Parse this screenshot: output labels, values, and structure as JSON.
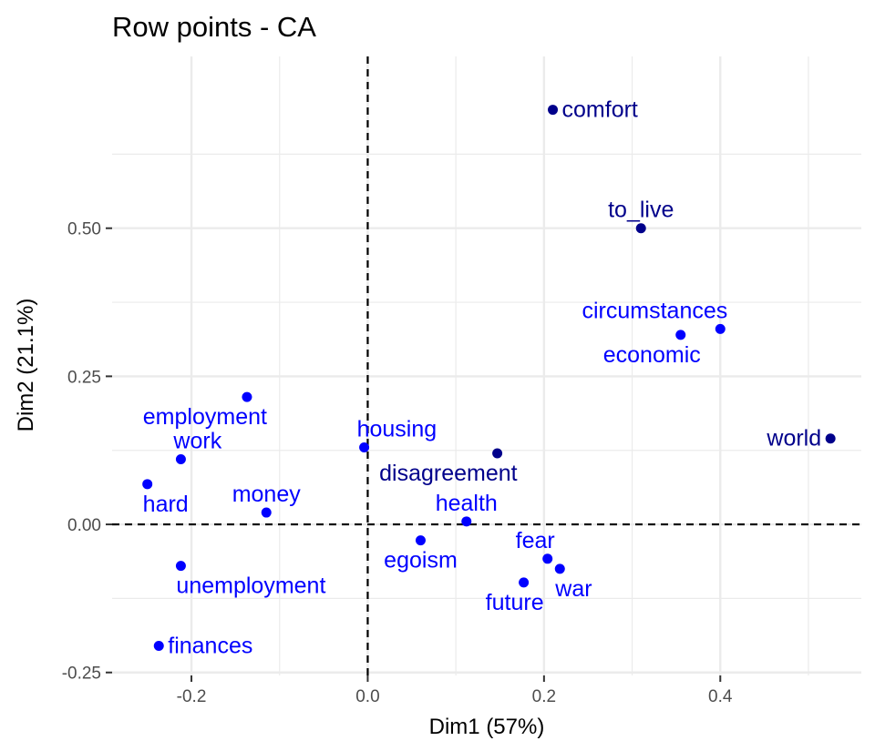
{
  "chart_data": {
    "type": "scatter",
    "title": "Row points - CA",
    "xlabel": "Dim1 (57%)",
    "ylabel": "Dim2 (21.1%)",
    "xlim": [
      -0.29,
      0.56
    ],
    "ylim": [
      -0.255,
      0.79
    ],
    "xticks": [
      -0.2,
      0.0,
      0.2,
      0.4
    ],
    "xtick_labels": [
      "-0.2",
      "0.0",
      "0.2",
      "0.4"
    ],
    "yticks": [
      -0.25,
      0.0,
      0.25,
      0.5
    ],
    "ytick_labels": [
      "-0.25",
      "0.00",
      "0.25",
      "0.50"
    ],
    "grid": true,
    "reference_lines": {
      "x": 0,
      "y": 0,
      "style": "dashed"
    },
    "colors": {
      "high_contribution": "#00008B",
      "low_contribution": "#0000FF",
      "grid": "#ebebeb"
    },
    "points": [
      {
        "label": "comfort",
        "x": 0.21,
        "y": 0.7,
        "color": "#00008B",
        "label_pos": "right"
      },
      {
        "label": "to_live",
        "x": 0.31,
        "y": 0.5,
        "color": "#00008B",
        "label_pos": "above"
      },
      {
        "label": "circumstances",
        "x": 0.4,
        "y": 0.33,
        "color": "#0000FF",
        "label_pos": "above-left"
      },
      {
        "label": "economic",
        "x": 0.355,
        "y": 0.32,
        "color": "#0000FF",
        "label_pos": "below-left"
      },
      {
        "label": "world",
        "x": 0.525,
        "y": 0.145,
        "color": "#00008B",
        "label_pos": "left"
      },
      {
        "label": "disagreement",
        "x": 0.147,
        "y": 0.12,
        "color": "#00008B",
        "label_pos": "below-left"
      },
      {
        "label": "employment",
        "x": -0.137,
        "y": 0.215,
        "color": "#0000FF",
        "label_pos": "below-left"
      },
      {
        "label": "work",
        "x": -0.212,
        "y": 0.11,
        "color": "#0000FF",
        "label_pos": "above-right"
      },
      {
        "label": "housing",
        "x": -0.004,
        "y": 0.13,
        "color": "#0000FF",
        "label_pos": "above-right"
      },
      {
        "label": "hard",
        "x": -0.25,
        "y": 0.068,
        "color": "#0000FF",
        "label_pos": "below-right"
      },
      {
        "label": "money",
        "x": -0.115,
        "y": 0.02,
        "color": "#0000FF",
        "label_pos": "above"
      },
      {
        "label": "health",
        "x": 0.112,
        "y": 0.005,
        "color": "#0000FF",
        "label_pos": "above"
      },
      {
        "label": "egoism",
        "x": 0.06,
        "y": -0.027,
        "color": "#0000FF",
        "label_pos": "below"
      },
      {
        "label": "fear",
        "x": 0.204,
        "y": -0.058,
        "color": "#0000FF",
        "label_pos": "above-left"
      },
      {
        "label": "war",
        "x": 0.218,
        "y": -0.075,
        "color": "#0000FF",
        "label_pos": "below-right"
      },
      {
        "label": "future",
        "x": 0.177,
        "y": -0.098,
        "color": "#0000FF",
        "label_pos": "below-left"
      },
      {
        "label": "unemployment",
        "x": -0.212,
        "y": -0.07,
        "color": "#0000FF",
        "label_pos": "below-right"
      },
      {
        "label": "finances",
        "x": -0.237,
        "y": -0.205,
        "color": "#0000FF",
        "label_pos": "right"
      }
    ]
  }
}
